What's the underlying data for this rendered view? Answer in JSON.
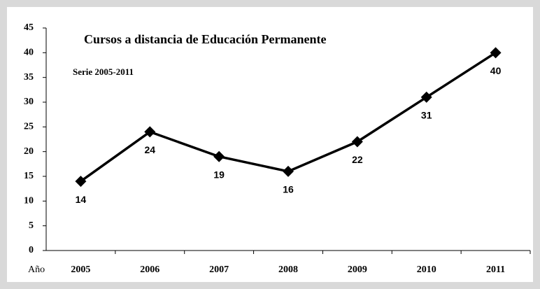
{
  "chart_data": {
    "type": "line",
    "title": "Cursos a distancia de Educación Permanente",
    "subtitle": "Serie 2005-2011",
    "x_label": "Año",
    "categories": [
      "2005",
      "2006",
      "2007",
      "2008",
      "2009",
      "2010",
      "2011"
    ],
    "series": [
      {
        "name": "Cursos",
        "color": "#000000",
        "values": [
          14,
          24,
          19,
          16,
          22,
          31,
          40
        ]
      }
    ],
    "ylim": [
      0,
      45
    ],
    "yticks": [
      0,
      5,
      10,
      15,
      20,
      25,
      30,
      35,
      40,
      45
    ],
    "grid": false
  }
}
